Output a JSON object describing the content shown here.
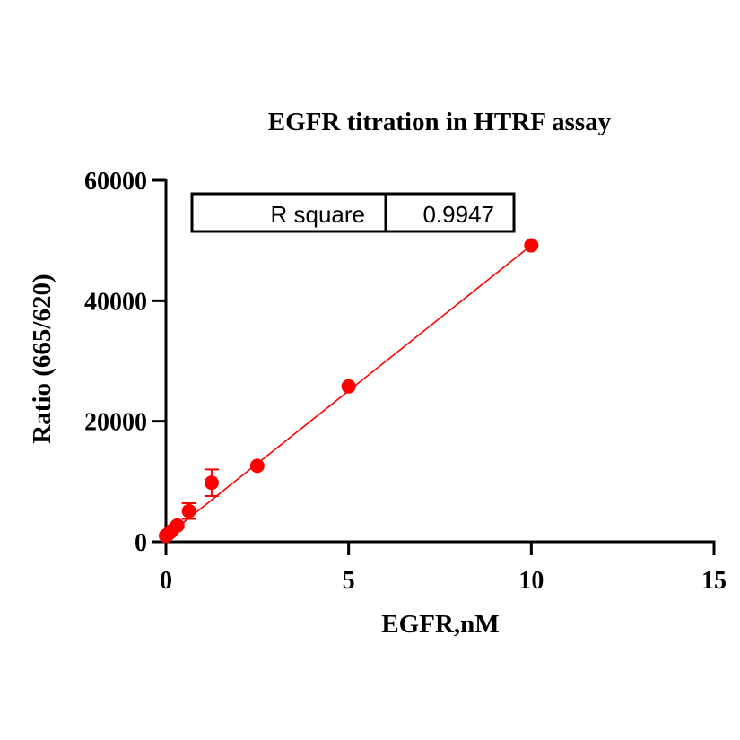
{
  "chart_data": {
    "type": "scatter",
    "title": "EGFR  titration in  HTRF assay",
    "xlabel": "EGFR,nM",
    "ylabel": "Ratio (665/620)",
    "xlim": [
      0,
      15
    ],
    "ylim": [
      0,
      60000
    ],
    "x_ticks": [
      0,
      5,
      10,
      15
    ],
    "x_tick_labels": [
      "0",
      "5",
      "10",
      "15"
    ],
    "y_ticks": [
      0,
      20000,
      40000,
      60000
    ],
    "y_tick_labels": [
      "0",
      "20000",
      "40000",
      "60000"
    ],
    "grid": false,
    "series": [
      {
        "color": "#ff0000",
        "points": [
          {
            "x": 0.0,
            "y": 1000,
            "err": 0
          },
          {
            "x": 0.08,
            "y": 1400,
            "err": 0
          },
          {
            "x": 0.16,
            "y": 1800,
            "err": 0
          },
          {
            "x": 0.31,
            "y": 2700,
            "err": 400
          },
          {
            "x": 0.63,
            "y": 5100,
            "err": 1300
          },
          {
            "x": 1.25,
            "y": 9800,
            "err": 2200
          },
          {
            "x": 2.5,
            "y": 12600,
            "err": 0
          },
          {
            "x": 5.0,
            "y": 25800,
            "err": 0
          },
          {
            "x": 10.0,
            "y": 49200,
            "err": 0
          }
        ],
        "fit_line": {
          "x": [
            0,
            10
          ],
          "y": [
            900,
            49200
          ]
        }
      }
    ],
    "annotation": {
      "label": "R square",
      "value": "0.9947"
    }
  }
}
